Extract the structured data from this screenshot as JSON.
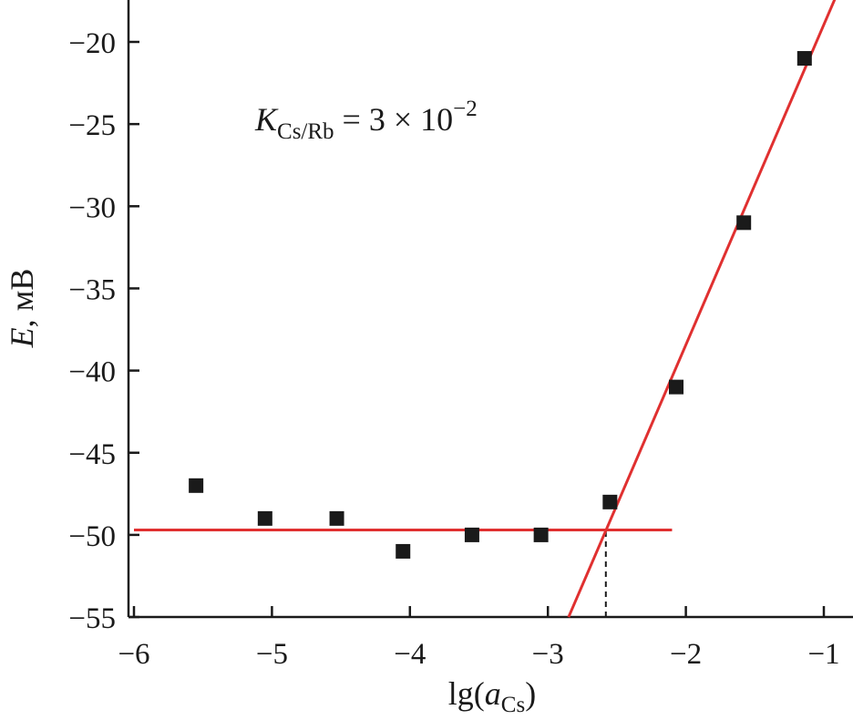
{
  "chart_data": {
    "type": "scatter",
    "title": "",
    "xlabel": {
      "base": "lg(",
      "italic": "a",
      "subscript": "Cs",
      "close": ")"
    },
    "ylabel": {
      "italic": "E",
      "rest": ", мВ"
    },
    "xlim": [
      -6,
      -0.8
    ],
    "ylim": [
      -55,
      -17
    ],
    "xticks": [
      -6,
      -5,
      -4,
      -3,
      -2,
      -1
    ],
    "yticks": [
      -55,
      -50,
      -45,
      -40,
      -35,
      -30,
      -25,
      -20
    ],
    "tick_minus": "−",
    "grid": false,
    "point_color": "#1a1a1a",
    "line_color": "#e03030",
    "series": [
      {
        "marker": "square",
        "x": [
          -5.55,
          -5.05,
          -4.53,
          -4.05,
          -3.55,
          -3.05,
          -2.55,
          -2.07,
          -1.58,
          -1.14
        ],
        "y": [
          -47,
          -49,
          -49,
          -51,
          -50,
          -50,
          -48,
          -41,
          -31,
          -21
        ]
      }
    ],
    "fit_lines": [
      {
        "x": [
          -6,
          -2.1
        ],
        "y": [
          -49.7,
          -49.7
        ]
      },
      {
        "x": [
          -2.85,
          -0.9
        ],
        "y": [
          -55,
          -17
        ]
      }
    ],
    "guide_line": {
      "x": [
        -2.58,
        -2.58
      ],
      "y": [
        -55,
        -49.7
      ],
      "style": "dashed"
    },
    "annotation": {
      "italic": "K",
      "subscript": "Cs/Rb",
      "text": " = 3 × 10",
      "superscript": "−2"
    }
  }
}
